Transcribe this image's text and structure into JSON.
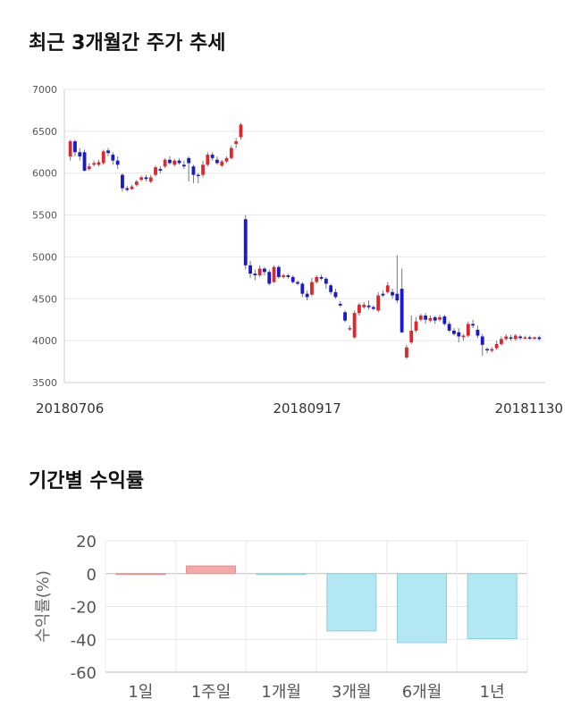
{
  "section1": {
    "title": "최근 3개월간 주가 추세"
  },
  "section2": {
    "title": "기간별 수익률"
  },
  "chart_data": [
    {
      "type": "candlestick",
      "title": "최근 3개월간 주가 추세",
      "ylim": [
        3500,
        7000
      ],
      "yticks": [
        3500,
        4000,
        4500,
        5000,
        5500,
        6000,
        6500,
        7000
      ],
      "x_labels": [
        {
          "label": "20180706",
          "index": 0
        },
        {
          "label": "20180917",
          "index": 50
        },
        {
          "label": "20181130",
          "index": 99
        }
      ],
      "candles": [
        [
          6200,
          6380,
          6400,
          6150
        ],
        [
          6380,
          6250,
          6400,
          6200
        ],
        [
          6250,
          6200,
          6300,
          6150
        ],
        [
          6250,
          6030,
          6280,
          6020
        ],
        [
          6050,
          6080,
          6120,
          6030
        ],
        [
          6100,
          6120,
          6150,
          6080
        ],
        [
          6100,
          6130,
          6160,
          6080
        ],
        [
          6120,
          6260,
          6280,
          6100
        ],
        [
          6270,
          6240,
          6300,
          6200
        ],
        [
          6220,
          6150,
          6250,
          6100
        ],
        [
          6150,
          6100,
          6200,
          6050
        ],
        [
          5980,
          5820,
          6000,
          5780
        ],
        [
          5820,
          5800,
          5850,
          5780
        ],
        [
          5810,
          5840,
          5860,
          5800
        ],
        [
          5860,
          5900,
          5920,
          5840
        ],
        [
          5920,
          5950,
          5970,
          5900
        ],
        [
          5950,
          5930,
          5980,
          5900
        ],
        [
          5900,
          5950,
          5980,
          5880
        ],
        [
          5980,
          6070,
          6090,
          5960
        ],
        [
          6050,
          6030,
          6080,
          6000
        ],
        [
          6080,
          6160,
          6180,
          6060
        ],
        [
          6160,
          6120,
          6200,
          6100
        ],
        [
          6100,
          6150,
          6170,
          6080
        ],
        [
          6150,
          6120,
          6180,
          6100
        ],
        [
          6100,
          6080,
          6150,
          6050
        ],
        [
          6180,
          6120,
          6200,
          5900
        ],
        [
          6080,
          5980,
          6100,
          5880
        ],
        [
          5980,
          5970,
          6000,
          5880
        ],
        [
          5980,
          6100,
          6150,
          5950
        ],
        [
          6100,
          6220,
          6250,
          6080
        ],
        [
          6220,
          6180,
          6250,
          6150
        ],
        [
          6160,
          6120,
          6200,
          6100
        ],
        [
          6090,
          6140,
          6160,
          6070
        ],
        [
          6140,
          6180,
          6200,
          6120
        ],
        [
          6180,
          6300,
          6330,
          6160
        ],
        [
          6350,
          6380,
          6420,
          6300
        ],
        [
          6430,
          6580,
          6600,
          6400
        ],
        [
          5450,
          4900,
          5500,
          4850
        ],
        [
          4900,
          4800,
          4950,
          4750
        ],
        [
          4800,
          4780,
          4850,
          4720
        ],
        [
          4780,
          4860,
          4900,
          4760
        ],
        [
          4860,
          4820,
          4880,
          4780
        ],
        [
          4820,
          4680,
          4850,
          4660
        ],
        [
          4700,
          4880,
          4900,
          4690
        ],
        [
          4880,
          4760,
          4900,
          4740
        ],
        [
          4760,
          4780,
          4800,
          4740
        ],
        [
          4780,
          4760,
          4800,
          4740
        ],
        [
          4760,
          4700,
          4780,
          4680
        ],
        [
          4700,
          4680,
          4720,
          4660
        ],
        [
          4680,
          4560,
          4700,
          4520
        ],
        [
          4560,
          4520,
          4600,
          4480
        ],
        [
          4550,
          4700,
          4750,
          4530
        ],
        [
          4700,
          4760,
          4780,
          4680
        ],
        [
          4760,
          4740,
          4790,
          4720
        ],
        [
          4740,
          4680,
          4760,
          4620
        ],
        [
          4660,
          4580,
          4680,
          4550
        ],
        [
          4580,
          4520,
          4620,
          4500
        ],
        [
          4440,
          4420,
          4470,
          4400
        ],
        [
          4340,
          4240,
          4360,
          4220
        ],
        [
          4140,
          4150,
          4180,
          4120
        ],
        [
          4040,
          4330,
          4360,
          4020
        ],
        [
          4330,
          4430,
          4450,
          4300
        ],
        [
          4400,
          4430,
          4460,
          4380
        ],
        [
          4420,
          4400,
          4480,
          4370
        ],
        [
          4400,
          4380,
          4420,
          4360
        ],
        [
          4360,
          4540,
          4580,
          4340
        ],
        [
          4560,
          4540,
          4600,
          4520
        ],
        [
          4580,
          4660,
          4700,
          4560
        ],
        [
          4580,
          4540,
          4620,
          4500
        ],
        [
          4560,
          4480,
          5020,
          4450
        ],
        [
          4620,
          4100,
          4860,
          4090
        ],
        [
          3800,
          3920,
          3950,
          3780
        ],
        [
          3980,
          4120,
          4300,
          3960
        ],
        [
          4120,
          4230,
          4280,
          4100
        ],
        [
          4250,
          4300,
          4320,
          4230
        ],
        [
          4300,
          4250,
          4330,
          4200
        ],
        [
          4240,
          4270,
          4300,
          4220
        ],
        [
          4280,
          4240,
          4300,
          4200
        ],
        [
          4250,
          4280,
          4310,
          4230
        ],
        [
          4290,
          4200,
          4310,
          4180
        ],
        [
          4200,
          4120,
          4230,
          4100
        ],
        [
          4120,
          4080,
          4150,
          4060
        ],
        [
          4100,
          4050,
          4150,
          3980
        ],
        [
          4050,
          4060,
          4080,
          4000
        ],
        [
          4060,
          4200,
          4230,
          4040
        ],
        [
          4200,
          4180,
          4250,
          4150
        ],
        [
          4130,
          4060,
          4180,
          4030
        ],
        [
          4050,
          3950,
          4080,
          3820
        ],
        [
          3900,
          3890,
          3920,
          3850
        ],
        [
          3880,
          3900,
          3920,
          3860
        ],
        [
          3910,
          3960,
          4000,
          3890
        ],
        [
          3960,
          4020,
          4050,
          3940
        ],
        [
          4020,
          4050,
          4080,
          4000
        ],
        [
          4040,
          4030,
          4070,
          4000
        ],
        [
          4020,
          4060,
          4080,
          4000
        ],
        [
          4050,
          4030,
          4070,
          4010
        ],
        [
          4030,
          4040,
          4060,
          4020
        ],
        [
          4040,
          4030,
          4060,
          4010
        ],
        [
          4030,
          4040,
          4050,
          4010
        ],
        [
          4040,
          4020,
          4060,
          4000
        ]
      ]
    },
    {
      "type": "bar",
      "title": "기간별 수익률",
      "ylabel": "수익률(%)",
      "ylim": [
        -60,
        20
      ],
      "yticks": [
        20,
        0,
        -20,
        -40,
        -60
      ],
      "categories": [
        "1일",
        "1주일",
        "1개월",
        "3개월",
        "6개월",
        "1년"
      ],
      "values": [
        0.0,
        4.7,
        -0.6,
        -34.9,
        -42.0,
        -39.6
      ],
      "colors": {
        "positive": "#f4a7a9",
        "negative": "#b3e8f2"
      }
    }
  ]
}
